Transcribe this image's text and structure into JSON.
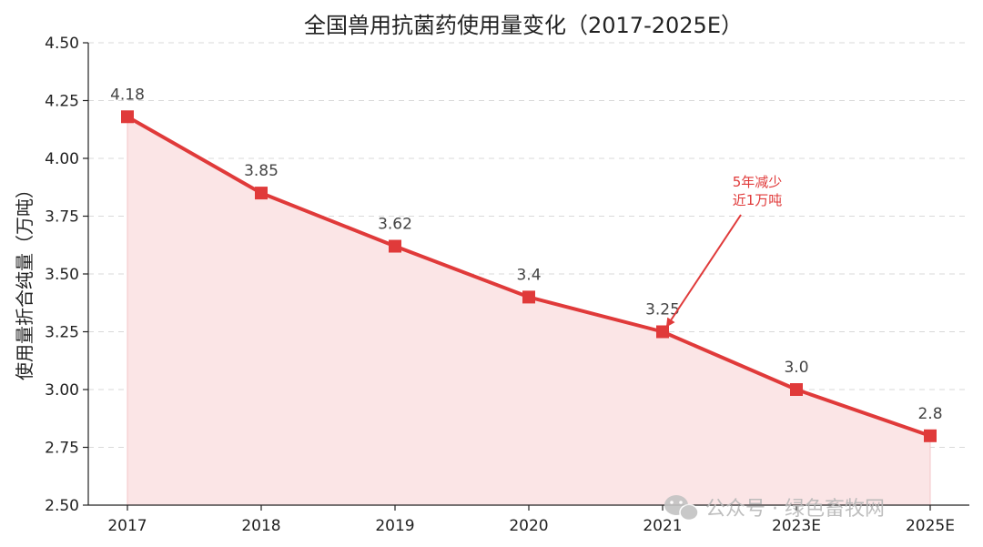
{
  "chart_data": {
    "type": "line",
    "title": "全国兽用抗菌药使用量变化（2017-2025E）",
    "xlabel": "",
    "ylabel": "使用量折合纯量（万吨）",
    "categories": [
      "2017",
      "2018",
      "2019",
      "2020",
      "2021",
      "2023E",
      "2025E"
    ],
    "series": [
      {
        "values": [
          4.18,
          3.85,
          3.62,
          3.4,
          3.25,
          3.0,
          2.8
        ]
      }
    ],
    "data_labels": [
      "4.18",
      "3.85",
      "3.62",
      "3.4",
      "3.25",
      "3.0",
      "2.8"
    ],
    "ylim": [
      2.5,
      4.5
    ],
    "yticks": [
      "2.50",
      "2.75",
      "3.00",
      "3.25",
      "3.50",
      "3.75",
      "4.00",
      "4.25",
      "4.50"
    ],
    "grid": "horizontal dashed",
    "area_fill": true,
    "colors": {
      "line": "#e03a3a",
      "fill": "#fbe5e6",
      "annotation": "#e03a3a"
    },
    "annotation": {
      "lines": [
        "5年减少",
        "近1万吨"
      ],
      "points_to": "2021"
    }
  },
  "watermark": {
    "icon": "wechat-icon",
    "text": "公众号 · 绿色畜牧网"
  }
}
